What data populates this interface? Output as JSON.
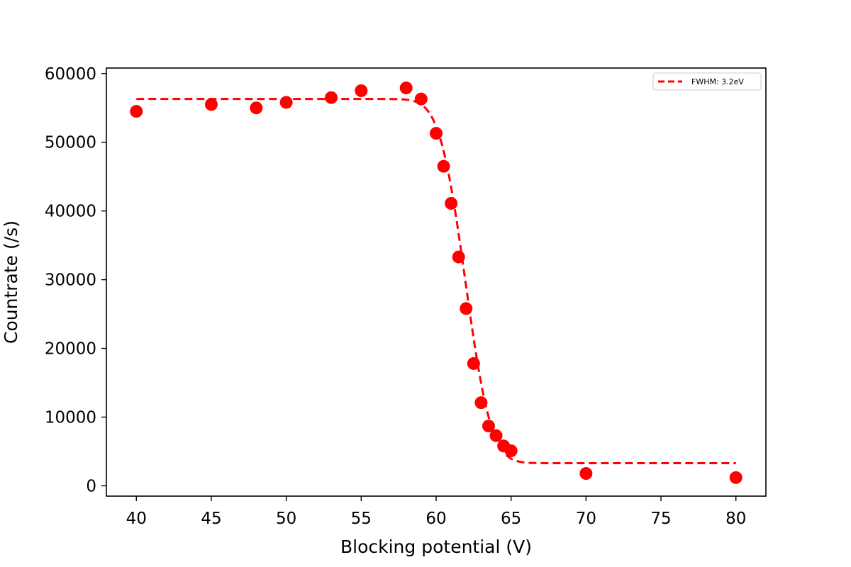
{
  "chart_data": {
    "type": "scatter",
    "title": "",
    "xlabel": "Blocking potential (V)",
    "ylabel": "Countrate (/s)",
    "xlim": [
      38,
      82
    ],
    "ylim": [
      -1500,
      60800
    ],
    "xticks": [
      40,
      45,
      50,
      55,
      60,
      65,
      70,
      75,
      80
    ],
    "yticks": [
      0,
      10000,
      20000,
      30000,
      40000,
      50000,
      60000
    ],
    "grid": false,
    "legend_position": "top-right",
    "color": "#ff0000",
    "scatter": {
      "x": [
        40,
        45,
        48,
        50,
        53,
        55,
        58,
        59,
        60,
        60.5,
        61,
        61.5,
        62,
        62.5,
        63,
        63.5,
        64,
        64.5,
        65,
        70,
        80
      ],
      "y": [
        54500,
        55500,
        55000,
        55800,
        56500,
        57500,
        57900,
        56300,
        51300,
        46500,
        41100,
        33300,
        25800,
        17800,
        12100,
        8700,
        7300,
        5800,
        5100,
        1800,
        1200
      ]
    },
    "fit": {
      "name": "FWHM: 3.2eV",
      "style": "dashed",
      "low": 3300,
      "high": 56300,
      "center": 61.95,
      "fwhm": 3.2
    }
  }
}
